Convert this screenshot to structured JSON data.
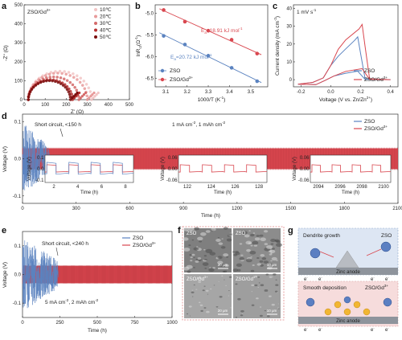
{
  "panels": {
    "a": {
      "label": "a",
      "sample": "ZSO/Gd",
      "sample_sup": "3+",
      "xlabel": "Z' (Ω)",
      "ylabel": "-Z'' (Ω)",
      "xticks": [
        "0",
        "100",
        "200",
        "300",
        "400",
        "500"
      ],
      "yticks": [
        "0",
        "100",
        "200",
        "300",
        "400",
        "500"
      ],
      "legend": [
        {
          "name": "10℃",
          "color": "#f2c5c5"
        },
        {
          "name": "20℃",
          "color": "#e89a9a"
        },
        {
          "name": "30℃",
          "color": "#d46a6a"
        },
        {
          "name": "40℃",
          "color": "#b53030"
        },
        {
          "name": "50℃",
          "color": "#7a0c0c"
        }
      ]
    },
    "b": {
      "label": "b",
      "xlabel": "1000/T (K",
      "xlabel_sup": "-1",
      "xlabel_end": ")",
      "ylabel": "lnR",
      "ylabel_sub": "ct",
      "ylabel_end": "(Ω",
      "ylabel_sup": "-1",
      "ylabel_close": ")",
      "xticks": [
        "3.1",
        "3.2",
        "3.3",
        "3.4",
        "3.5"
      ],
      "yticks": [
        "-5.0",
        "-5.5",
        "-6.0",
        "-6.5"
      ],
      "ea_red": "E",
      "ea_red_sub": "a",
      "ea_red_val": "=18.91 kJ mol",
      "ea_red_sup": "-1",
      "ea_blue": "E",
      "ea_blue_sub": "a",
      "ea_blue_val": "=20.72 kJ mol",
      "ea_blue_sup": "-1",
      "legend": [
        {
          "name": "ZSO",
          "sup": ""
        },
        {
          "name": "ZSO/Gd",
          "sup": "3+"
        }
      ]
    },
    "c": {
      "label": "c",
      "rate": "1 mV s",
      "rate_sup": "-1",
      "xlabel": "Voltage (V vs. Zn/Zn",
      "xlabel_sup": "2+",
      "xlabel_end": ")",
      "ylabel": "Current density (mA cm",
      "ylabel_sup": "-2",
      "ylabel_end": ")",
      "xticks": [
        "-0.2",
        "0.0",
        "0.2",
        "0.4"
      ],
      "yticks": [
        "0",
        "10",
        "20",
        "30",
        "40"
      ],
      "legend": [
        {
          "name": "ZSO",
          "sup": ""
        },
        {
          "name": "ZSO/Gd",
          "sup": "3+"
        }
      ]
    },
    "d": {
      "label": "d",
      "xlabel": "Time (h)",
      "ylabel": "Voltage (V)",
      "short": "Short circuit, <150 h",
      "cond": "1 mA cm",
      "cond_sup": "-2",
      "cond_mid": ", 1 mAh cm",
      "cond_sup2": "-2",
      "xticks": [
        "0",
        "300",
        "600",
        "900",
        "1200",
        "1500",
        "1800",
        "2100"
      ],
      "yticks": [
        "0.1",
        "0.0",
        "-0.1"
      ],
      "legend": [
        {
          "name": "ZSO",
          "sup": ""
        },
        {
          "name": "ZSO/Gd",
          "sup": "3+"
        }
      ],
      "insets": [
        {
          "xticks": [
            "2",
            "4",
            "6",
            "8"
          ],
          "yticks": [
            "0.1",
            "0.0",
            "-0.1"
          ],
          "xlabel": "Time (h)",
          "ylabel": "Voltage (V)"
        },
        {
          "xticks": [
            "122",
            "124",
            "126",
            "128"
          ],
          "yticks": [
            "0.06",
            "0.00",
            "-0.06"
          ],
          "xlabel": "Time (h)",
          "ylabel": "Voltage (V)"
        },
        {
          "xticks": [
            "2094",
            "2096",
            "2098",
            "2100"
          ],
          "yticks": [
            "0.06",
            "0.00",
            "-0.06"
          ],
          "xlabel": "Time (h)",
          "ylabel": "Voltage (V)"
        }
      ]
    },
    "e": {
      "label": "e",
      "xlabel": "Time (h)",
      "ylabel": "Voltage (V)",
      "short": "Short circuit, <240 h",
      "cond": "5 mA cm",
      "cond_sup": "-2",
      "cond_mid": ", 2 mAh cm",
      "cond_sup2": "-2",
      "xticks": [
        "0",
        "250",
        "500",
        "750",
        "1000"
      ],
      "yticks": [
        "0.1",
        "0.0",
        "-0.1"
      ],
      "legend": [
        {
          "name": "ZSO",
          "sup": ""
        },
        {
          "name": "ZSO/Gd",
          "sup": "3+"
        }
      ]
    },
    "f": {
      "label": "f",
      "tiles": [
        "ZSO",
        "ZSO",
        "ZSO/Gd",
        "ZSO/Gd"
      ],
      "tile_sups": [
        "",
        "",
        "3+",
        "3+"
      ],
      "scales": [
        "20 μm",
        "10 μm",
        "20 μm",
        "10 μm"
      ]
    },
    "g": {
      "label": "g",
      "top_title": "Dendrite growth",
      "top_label": "ZSO",
      "bottom_title": "Smooth deposition",
      "bottom_label": "ZSO/Gd",
      "bottom_sup": "3+",
      "anode": "Zinc anode",
      "electron": "e",
      "electron_sup": "-"
    }
  },
  "colors": {
    "blue": "#5b83c0",
    "red": "#d9474f",
    "pink": "#e8a7a7",
    "dark_red": "#8b1a1a"
  },
  "chart_data": [
    {
      "type": "scatter",
      "panel": "a",
      "xlabel": "Z' (Ω)",
      "ylabel": "-Z'' (Ω)",
      "xlim": [
        0,
        500
      ],
      "ylim": [
        0,
        500
      ],
      "series": [
        {
          "name": "10℃",
          "diameter": 300
        },
        {
          "name": "20℃",
          "diameter": 280
        },
        {
          "name": "30℃",
          "diameter": 240
        },
        {
          "name": "40℃",
          "diameter": 210
        },
        {
          "name": "50℃",
          "diameter": 200
        }
      ]
    },
    {
      "type": "scatter",
      "panel": "b",
      "xlabel": "1000/T (K-1)",
      "ylabel": "lnRct (Ω-1)",
      "xlim": [
        3.05,
        3.58
      ],
      "ylim": [
        -6.7,
        -4.8
      ],
      "series": [
        {
          "name": "ZSO",
          "x": [
            3.09,
            3.19,
            3.3,
            3.41,
            3.53
          ],
          "y": [
            -5.52,
            -5.72,
            -5.98,
            -6.26,
            -6.57
          ]
        },
        {
          "name": "ZSO/Gd3+",
          "x": [
            3.09,
            3.19,
            3.3,
            3.41,
            3.53
          ],
          "y": [
            -4.92,
            -5.19,
            -5.4,
            -5.61,
            -5.93
          ]
        }
      ]
    },
    {
      "type": "line",
      "panel": "c",
      "xlabel": "Voltage (V vs. Zn/Zn2+)",
      "ylabel": "Current density (mA cm-2)",
      "xlim": [
        -0.25,
        0.45
      ],
      "ylim": [
        -4,
        42
      ],
      "series": [
        {
          "name": "ZSO",
          "peak": [
            0.18,
            24
          ]
        },
        {
          "name": "ZSO/Gd3+",
          "peak": [
            0.21,
            31
          ]
        }
      ]
    },
    {
      "type": "line",
      "panel": "d",
      "xlabel": "Time (h)",
      "ylabel": "Voltage (V)",
      "xlim": [
        0,
        2100
      ],
      "ylim": [
        -0.12,
        0.12
      ],
      "series": [
        {
          "name": "ZSO",
          "end": 150
        },
        {
          "name": "ZSO/Gd3+",
          "end": 2100
        }
      ]
    },
    {
      "type": "line",
      "panel": "e",
      "xlabel": "Time (h)",
      "ylabel": "Voltage (V)",
      "xlim": [
        0,
        1000
      ],
      "ylim": [
        -0.15,
        0.15
      ],
      "series": [
        {
          "name": "ZSO",
          "end": 240
        },
        {
          "name": "ZSO/Gd3+",
          "end": 1000
        }
      ]
    }
  ]
}
